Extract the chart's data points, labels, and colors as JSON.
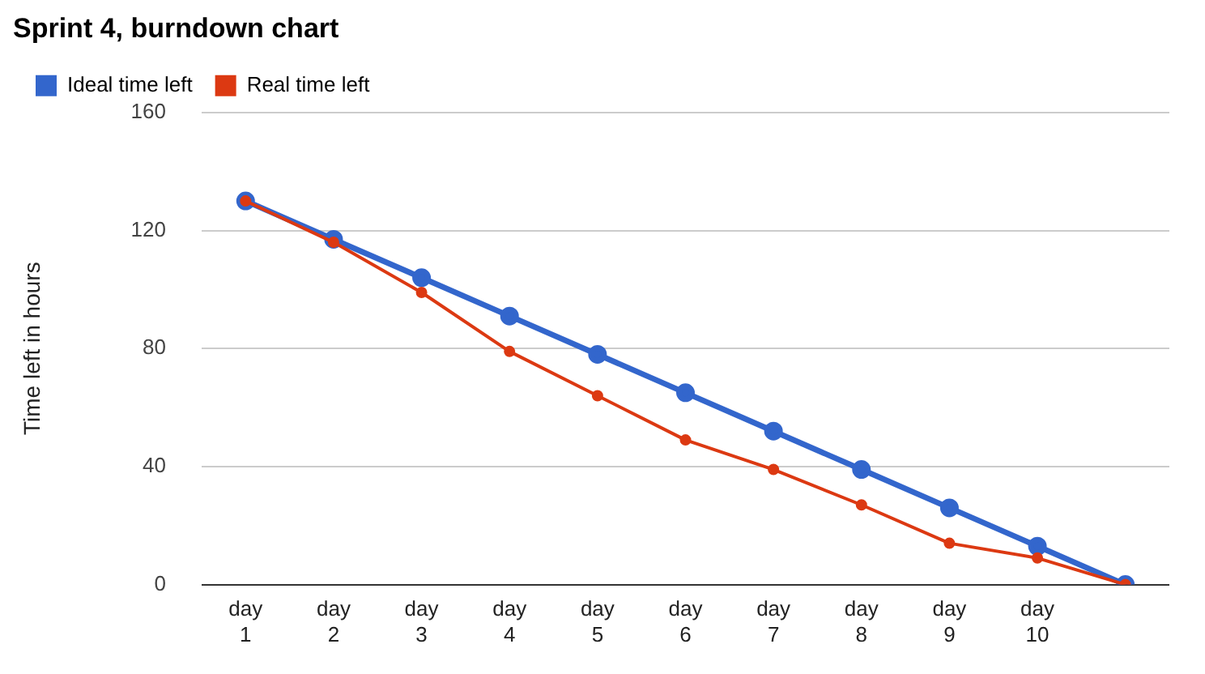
{
  "chart_data": {
    "type": "line",
    "title": "Sprint 4, burndown chart",
    "ylabel": "Time left in hours",
    "categories": [
      "day 1",
      "day 2",
      "day 3",
      "day 4",
      "day 5",
      "day 6",
      "day 7",
      "day 8",
      "day 9",
      "day 10",
      null
    ],
    "series": [
      {
        "name": "Ideal time left",
        "color": "#3366cc",
        "values": [
          130,
          117,
          104,
          91,
          78,
          65,
          52,
          39,
          26,
          13,
          0
        ]
      },
      {
        "name": "Real time left",
        "color": "#dc3912",
        "values": [
          130,
          116,
          99,
          79,
          64,
          49,
          39,
          27,
          14,
          9,
          0
        ]
      }
    ],
    "ylim": [
      0,
      160
    ],
    "yticks": [
      0,
      40,
      80,
      120,
      160
    ],
    "grid": "y",
    "legend": "top left",
    "marker": "circle",
    "line_style": "solid"
  }
}
